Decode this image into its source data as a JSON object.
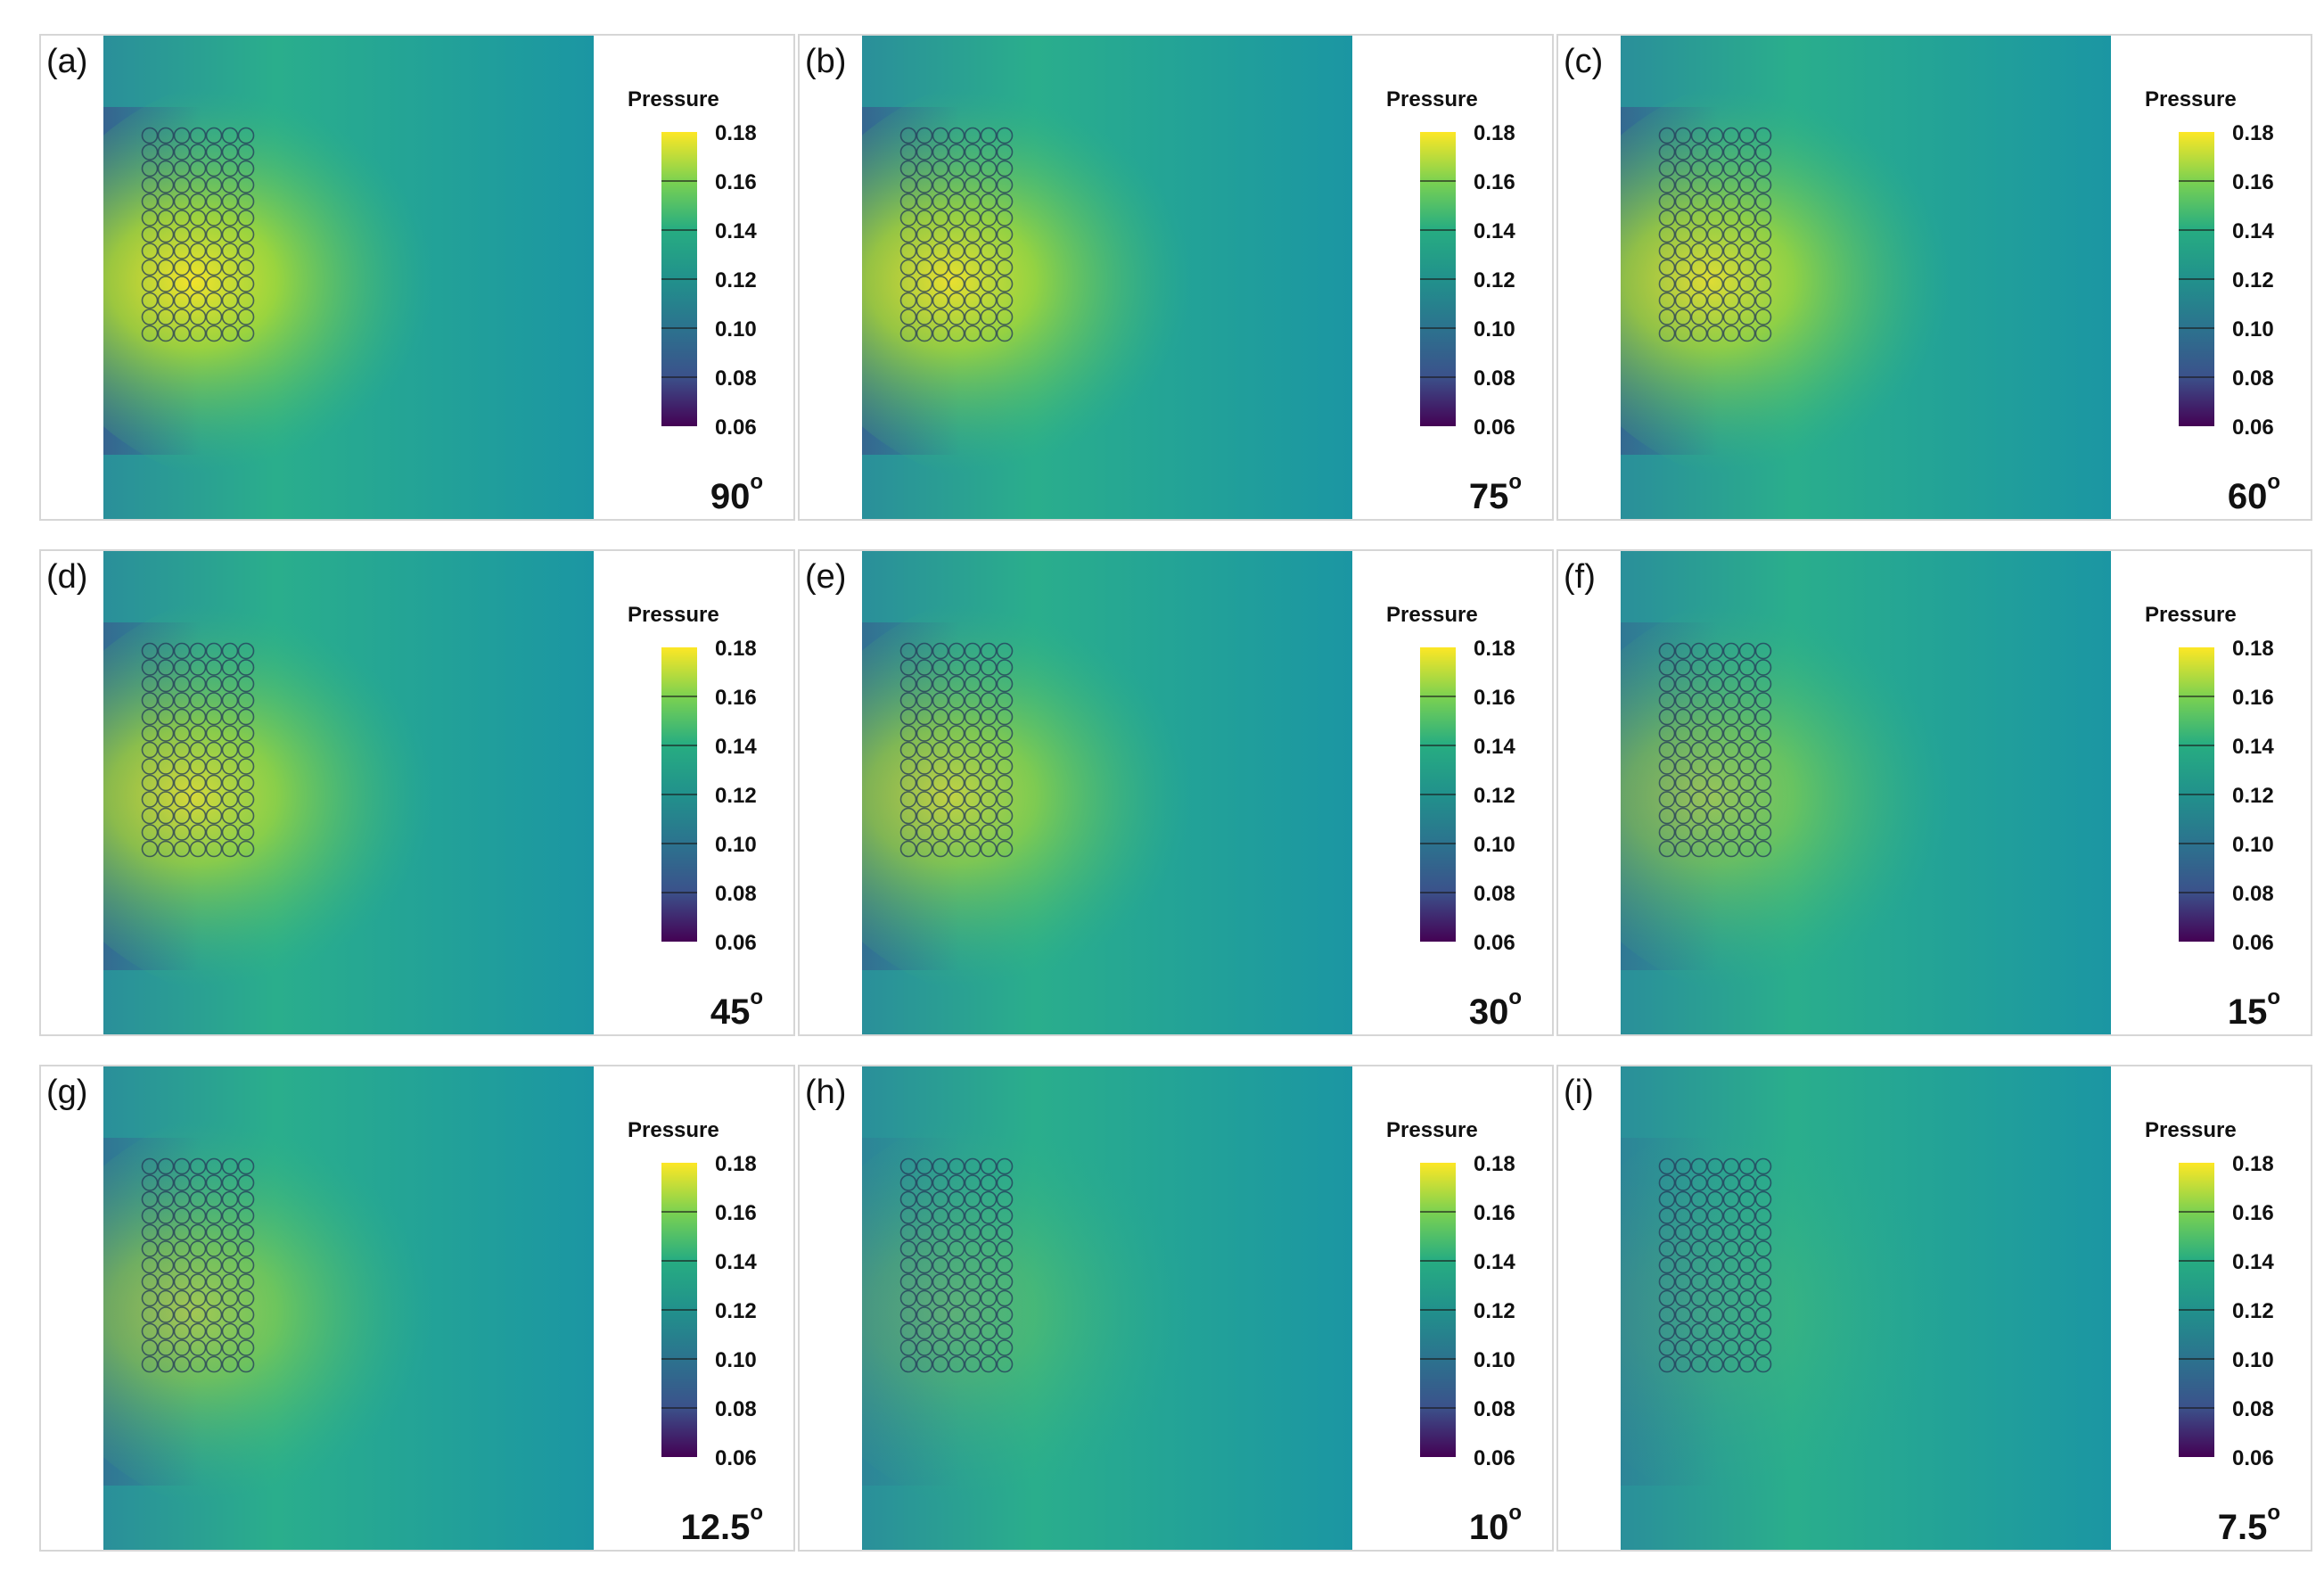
{
  "figure": {
    "colorbar": {
      "title": "Pressure",
      "ticks": [
        "0.18",
        "0.16",
        "0.14",
        "0.12",
        "0.10",
        "0.08",
        "0.06"
      ],
      "range": [
        0.06,
        0.18
      ],
      "colormap": "viridis"
    },
    "panels": [
      {
        "label": "(a)",
        "angle": "90",
        "unit": "o",
        "high_intensity": 1.0
      },
      {
        "label": "(b)",
        "angle": "75",
        "unit": "o",
        "high_intensity": 0.95
      },
      {
        "label": "(c)",
        "angle": "60",
        "unit": "o",
        "high_intensity": 0.9
      },
      {
        "label": "(d)",
        "angle": "45",
        "unit": "o",
        "high_intensity": 0.85
      },
      {
        "label": "(e)",
        "angle": "30",
        "unit": "o",
        "high_intensity": 0.75
      },
      {
        "label": "(f)",
        "angle": "15",
        "unit": "o",
        "high_intensity": 0.55
      },
      {
        "label": "(g)",
        "angle": "12.5",
        "unit": "o",
        "high_intensity": 0.6
      },
      {
        "label": "(h)",
        "angle": "10",
        "unit": "o",
        "high_intensity": 0.25
      },
      {
        "label": "(i)",
        "angle": "7.5",
        "unit": "o",
        "high_intensity": 0.1
      }
    ],
    "colors": {
      "bg_field": "#1f9a8a",
      "low": "#440154",
      "mid": "#21918c",
      "high": "#fde725"
    }
  }
}
